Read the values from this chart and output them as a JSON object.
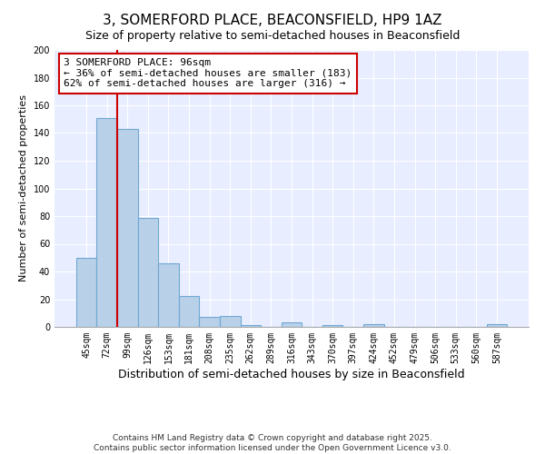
{
  "title": "3, SOMERFORD PLACE, BEACONSFIELD, HP9 1AZ",
  "subtitle": "Size of property relative to semi-detached houses in Beaconsfield",
  "xlabel": "Distribution of semi-detached houses by size in Beaconsfield",
  "ylabel": "Number of semi-detached properties",
  "categories": [
    "45sqm",
    "72sqm",
    "99sqm",
    "126sqm",
    "153sqm",
    "181sqm",
    "208sqm",
    "235sqm",
    "262sqm",
    "289sqm",
    "316sqm",
    "343sqm",
    "370sqm",
    "397sqm",
    "424sqm",
    "452sqm",
    "479sqm",
    "506sqm",
    "533sqm",
    "560sqm",
    "587sqm"
  ],
  "values": [
    50,
    151,
    143,
    79,
    46,
    22,
    7,
    8,
    1,
    0,
    3,
    0,
    1,
    0,
    2,
    0,
    0,
    0,
    0,
    0,
    2
  ],
  "bar_color": "#b8d0e8",
  "bar_edgecolor": "#6fa8d4",
  "bar_linewidth": 0.8,
  "vline_x_index": 1.5,
  "vline_color": "#cc0000",
  "annotation_title": "3 SOMERFORD PLACE: 96sqm",
  "annotation_line1": "← 36% of semi-detached houses are smaller (183)",
  "annotation_line2": "62% of semi-detached houses are larger (316) →",
  "annotation_box_edgecolor": "#cc0000",
  "ylim": [
    0,
    200
  ],
  "yticks": [
    0,
    20,
    40,
    60,
    80,
    100,
    120,
    140,
    160,
    180,
    200
  ],
  "bg_color": "#e8eeff",
  "footer1": "Contains HM Land Registry data © Crown copyright and database right 2025.",
  "footer2": "Contains public sector information licensed under the Open Government Licence v3.0.",
  "title_fontsize": 11,
  "subtitle_fontsize": 9,
  "xlabel_fontsize": 9,
  "ylabel_fontsize": 8,
  "tick_fontsize": 7,
  "annotation_fontsize": 8,
  "footer_fontsize": 6.5
}
